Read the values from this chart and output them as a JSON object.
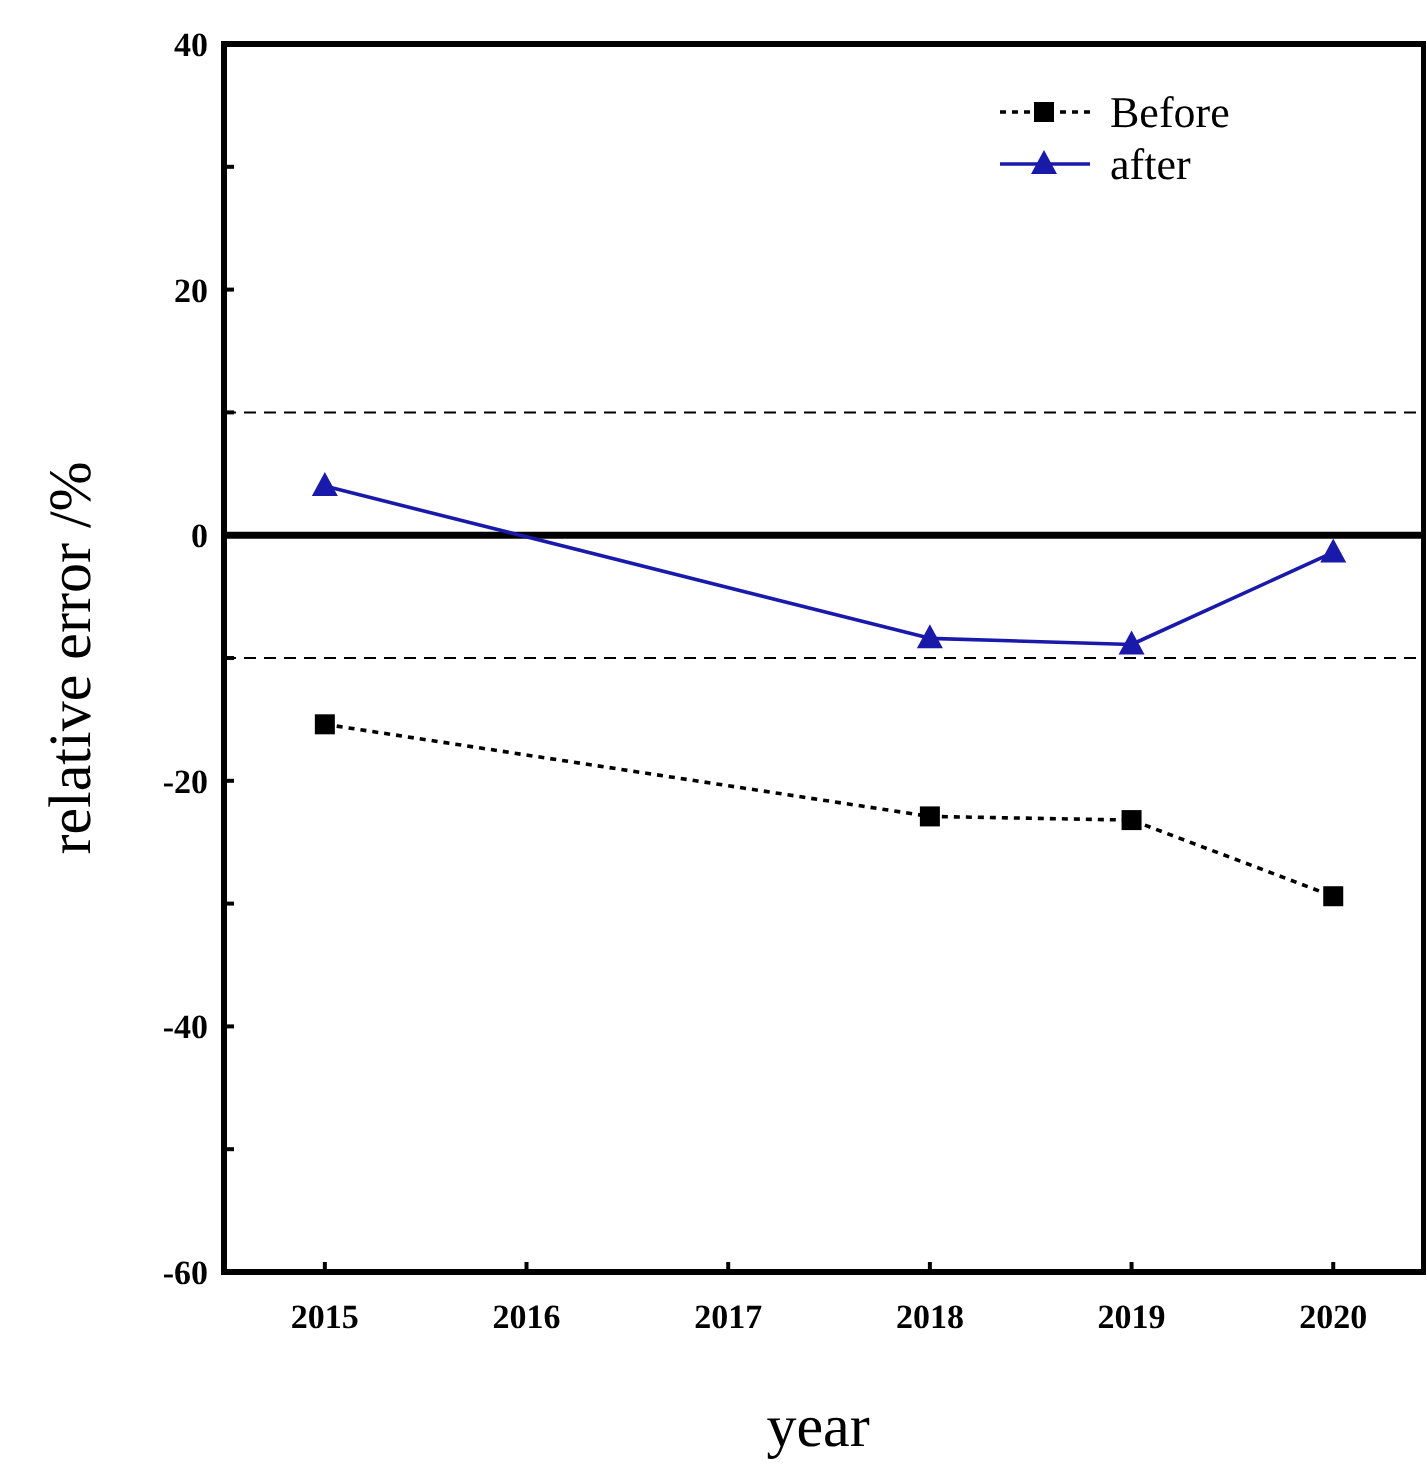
{
  "chart_data": {
    "type": "line",
    "xlabel": "year",
    "ylabel": "relative error /%",
    "xlim": [
      2014.5,
      2020.45
    ],
    "xticks": [
      2015,
      2016,
      2017,
      2018,
      2019,
      2020
    ],
    "ylim": [
      -60,
      40
    ],
    "yticks": [
      -60,
      {
        "value": -50,
        "label": null
      },
      -40,
      {
        "value": -30,
        "label": null
      },
      -20,
      {
        "value": -10,
        "label": null
      },
      0,
      {
        "value": 10,
        "label": null
      },
      20,
      {
        "value": 30,
        "label": null
      },
      40
    ],
    "grid": false,
    "legend": "top right",
    "ref_lines": [
      {
        "axis": "y",
        "value": 0,
        "color": "#000000",
        "line_style": "solid"
      },
      {
        "axis": "y",
        "value": 10,
        "color": "#000000",
        "line_style": "dashed"
      },
      {
        "axis": "y",
        "value": -10,
        "color": "#000000",
        "line_style": "dashed"
      }
    ],
    "series": [
      {
        "name": "Before",
        "color": "#000000",
        "marker": "square",
        "line_style": "dotted",
        "x": [
          2015,
          2018,
          2019,
          2020
        ],
        "values": [
          -15.4,
          -22.9,
          -23.2,
          -29.4
        ]
      },
      {
        "name": "after",
        "color": "#1a1aaa",
        "marker": "triangle",
        "line_style": "solid",
        "x": [
          2015,
          2018,
          2019,
          2020
        ],
        "values": [
          4.0,
          -8.4,
          -8.9,
          -1.4
        ]
      }
    ]
  }
}
